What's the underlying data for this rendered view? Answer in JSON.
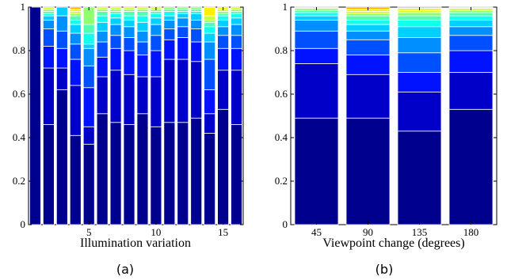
{
  "palette": [
    "#00008F",
    "#0000C8",
    "#0012FF",
    "#0050FF",
    "#008FFF",
    "#00CFFF",
    "#10FFEF",
    "#50FFAF",
    "#8FFF70",
    "#CFFF30",
    "#FFEF00",
    "#FFAF00",
    "#FF7000",
    "#FF3000",
    "#CF0000",
    "#800000"
  ],
  "chart_data": [
    {
      "panel": "a",
      "type": "bar",
      "stacked": true,
      "caption": "(a)",
      "xlabel": "Illumination variation",
      "ylabel": "",
      "ylim": [
        0,
        1
      ],
      "xticks": [
        5,
        10,
        15
      ],
      "yticks": [
        0,
        0.2,
        0.4,
        0.6,
        0.8,
        1
      ],
      "categories": [
        1,
        2,
        3,
        4,
        5,
        6,
        7,
        8,
        9,
        10,
        11,
        12,
        13,
        14,
        15,
        16
      ],
      "bars": [
        [
          1.0
        ],
        [
          0.46,
          0.26,
          0.1,
          0.08,
          0.04,
          0.02,
          0.01,
          0.01,
          0.01,
          0.01
        ],
        [
          0.62,
          0.1,
          0.09,
          0.08,
          0.07,
          0.04
        ],
        [
          0.41,
          0.23,
          0.12,
          0.07,
          0.05,
          0.04,
          0.02,
          0.02,
          0.01,
          0.01,
          0.01,
          0.01
        ],
        [
          0.37,
          0.08,
          0.18,
          0.1,
          0.08,
          0.02,
          0.05,
          0.04,
          0.08
        ],
        [
          0.51,
          0.17,
          0.09,
          0.07,
          0.05,
          0.04,
          0.03,
          0.02,
          0.01,
          0.01
        ],
        [
          0.47,
          0.24,
          0.1,
          0.06,
          0.05,
          0.03,
          0.02,
          0.01,
          0.01,
          0.01
        ],
        [
          0.46,
          0.23,
          0.11,
          0.06,
          0.05,
          0.03,
          0.02,
          0.02,
          0.01,
          0.01
        ],
        [
          0.51,
          0.17,
          0.1,
          0.06,
          0.05,
          0.04,
          0.03,
          0.02,
          0.01,
          0.01
        ],
        [
          0.45,
          0.23,
          0.12,
          0.07,
          0.05,
          0.03,
          0.02,
          0.01,
          0.01,
          0.01
        ],
        [
          0.47,
          0.29,
          0.09,
          0.05,
          0.04,
          0.02,
          0.02,
          0.01,
          0.01
        ],
        [
          0.47,
          0.29,
          0.1,
          0.05,
          0.04,
          0.02,
          0.01,
          0.01,
          0.01
        ],
        [
          0.49,
          0.26,
          0.09,
          0.06,
          0.04,
          0.03,
          0.01,
          0.01,
          0.01
        ],
        [
          0.42,
          0.09,
          0.11,
          0.14,
          0.08,
          0.04,
          0.03,
          0.02,
          0.01,
          0.02,
          0.04
        ],
        [
          0.53,
          0.18,
          0.1,
          0.06,
          0.04,
          0.03,
          0.02,
          0.01,
          0.01,
          0.01,
          0.01
        ],
        [
          0.46,
          0.25,
          0.1,
          0.06,
          0.05,
          0.03,
          0.02,
          0.01,
          0.01,
          0.01
        ]
      ]
    },
    {
      "panel": "b",
      "type": "bar",
      "stacked": true,
      "caption": "(b)",
      "xlabel": "Viewpoint change (degrees)",
      "ylabel": "",
      "ylim": [
        0,
        1
      ],
      "yticks": [
        0,
        0.2,
        0.4,
        0.6,
        0.8,
        1
      ],
      "categories": [
        "45",
        "90",
        "135",
        "180"
      ],
      "bars": [
        [
          0.49,
          0.25,
          0.07,
          0.08,
          0.05,
          0.02,
          0.015,
          0.01,
          0.01,
          0.01,
          0.005
        ],
        [
          0.49,
          0.2,
          0.09,
          0.07,
          0.04,
          0.03,
          0.02,
          0.02,
          0.01,
          0.01,
          0.01,
          0.01
        ],
        [
          0.43,
          0.18,
          0.09,
          0.09,
          0.07,
          0.05,
          0.03,
          0.02,
          0.015,
          0.01,
          0.01,
          0.005,
          0.005,
          0.005,
          0.005,
          0.005
        ],
        [
          0.53,
          0.17,
          0.1,
          0.07,
          0.04,
          0.03,
          0.02,
          0.015,
          0.01,
          0.01,
          0.005,
          0.005,
          0.005
        ]
      ]
    }
  ]
}
